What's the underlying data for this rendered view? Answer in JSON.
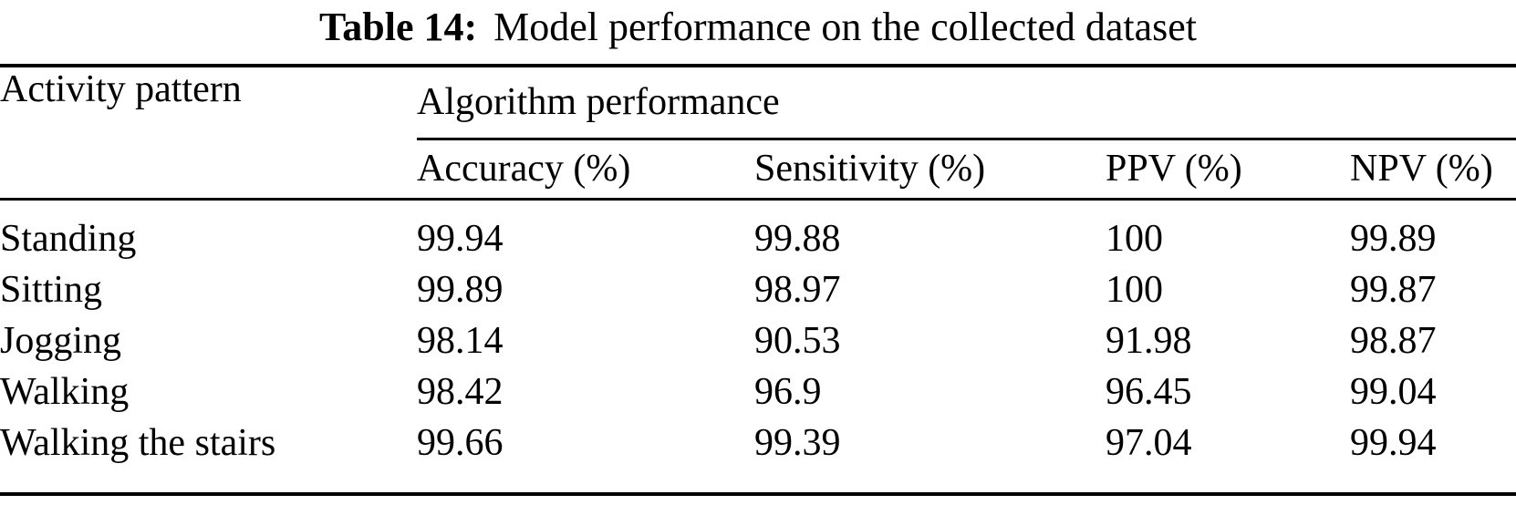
{
  "caption": {
    "label": "Table 14:",
    "text": "Model performance on the collected dataset"
  },
  "table": {
    "activity_header": "Activity pattern",
    "group_header": "Algorithm performance",
    "sub_headers": [
      "Accuracy (%)",
      "Sensitivity (%)",
      "PPV (%)",
      "NPV (%)"
    ],
    "rows": [
      {
        "activity": "Standing",
        "accuracy": "99.94",
        "sensitivity": "99.88",
        "ppv": "100",
        "npv": "99.89"
      },
      {
        "activity": "Sitting",
        "accuracy": "99.89",
        "sensitivity": "98.97",
        "ppv": "100",
        "npv": "99.87"
      },
      {
        "activity": "Jogging",
        "accuracy": "98.14",
        "sensitivity": "90.53",
        "ppv": "91.98",
        "npv": "98.87"
      },
      {
        "activity": "Walking",
        "accuracy": "98.42",
        "sensitivity": "96.9",
        "ppv": "96.45",
        "npv": "99.04"
      },
      {
        "activity": "Walking the stairs",
        "accuracy": "99.66",
        "sensitivity": "99.39",
        "ppv": "97.04",
        "npv": "99.94"
      }
    ]
  },
  "colors": {
    "text": "#000000",
    "background": "#ffffff",
    "rule": "#000000"
  },
  "chart_data": {
    "type": "table",
    "title": "Table 14: Model performance on the collected dataset",
    "columns": [
      "Activity pattern",
      "Accuracy (%)",
      "Sensitivity (%)",
      "PPV (%)",
      "NPV (%)"
    ],
    "column_group": {
      "label": "Algorithm performance",
      "spans": [
        "Accuracy (%)",
        "Sensitivity (%)",
        "PPV (%)",
        "NPV (%)"
      ]
    },
    "rows": [
      [
        "Standing",
        99.94,
        99.88,
        100,
        99.89
      ],
      [
        "Sitting",
        99.89,
        98.97,
        100,
        99.87
      ],
      [
        "Jogging",
        98.14,
        90.53,
        91.98,
        98.87
      ],
      [
        "Walking",
        98.42,
        96.9,
        96.45,
        99.04
      ],
      [
        "Walking the stairs",
        99.66,
        99.39,
        97.04,
        99.94
      ]
    ]
  }
}
